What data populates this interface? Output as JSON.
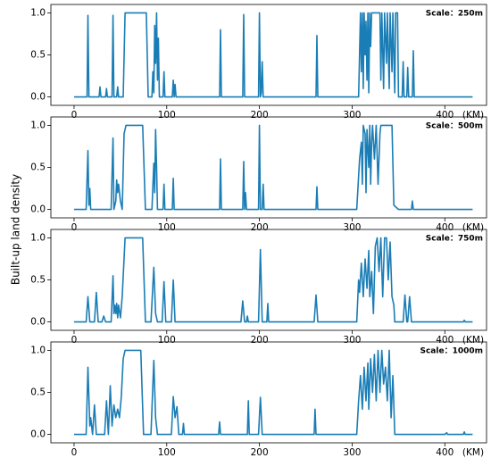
{
  "ylabel": "Built-up  land  density",
  "chart_data": [
    {
      "type": "line",
      "annotation": "Scale：250m",
      "xlabel": "(KM)",
      "color": "#1a7db5",
      "xlim": [
        -25,
        445
      ],
      "ylim": [
        -0.1,
        1.1
      ],
      "xticks": [
        0,
        100,
        200,
        300,
        400
      ],
      "yticks": [
        {
          "value": 0,
          "label": "0.0"
        },
        {
          "value": 0.5,
          "label": "0.5"
        },
        {
          "value": 1,
          "label": "1.0"
        }
      ],
      "x": [
        0,
        14,
        15,
        16,
        27,
        28,
        29,
        34,
        35,
        36,
        41,
        42,
        43,
        46,
        47,
        48,
        53,
        55,
        78,
        80,
        84,
        85,
        86,
        87,
        88,
        89,
        90,
        91,
        92,
        96,
        97,
        98,
        106,
        107,
        108,
        109,
        110,
        157,
        158,
        159,
        182,
        183,
        184,
        199,
        200,
        201,
        202,
        203,
        204,
        261,
        262,
        263,
        307,
        309,
        310,
        311,
        312,
        313,
        314,
        315,
        316,
        317,
        318,
        319,
        320,
        321,
        330,
        331,
        332,
        334,
        335,
        337,
        338,
        340,
        341,
        343,
        344,
        346,
        347,
        349,
        350,
        354,
        355,
        356,
        359,
        360,
        361,
        365,
        366,
        367,
        430
      ],
      "values": [
        0,
        0,
        0.97,
        0,
        0,
        0.12,
        0,
        0,
        0.1,
        0,
        0,
        0.97,
        0,
        0,
        0.12,
        0,
        0,
        1,
        1,
        0,
        0,
        0.3,
        0.05,
        0.85,
        0.4,
        1,
        0.2,
        0.7,
        0,
        0,
        0.3,
        0,
        0,
        0.2,
        0,
        0.15,
        0,
        0,
        0.8,
        0,
        0,
        0.98,
        0,
        0,
        1,
        0,
        0.05,
        0.42,
        0,
        0,
        0.73,
        0,
        0,
        1,
        0.3,
        1,
        0.1,
        1,
        0.5,
        0.9,
        0.2,
        1,
        0.05,
        1,
        0.6,
        1,
        1,
        0.2,
        1,
        0.1,
        1,
        0.4,
        1,
        0.1,
        1,
        0.3,
        1,
        0.05,
        1,
        1,
        0,
        0,
        0.42,
        0,
        0,
        0.35,
        0,
        0,
        0.55,
        0,
        0
      ]
    },
    {
      "type": "line",
      "annotation": "Scale：500m",
      "xlabel": "(KM)",
      "color": "#1a7db5",
      "xlim": [
        -25,
        445
      ],
      "ylim": [
        -0.1,
        1.1
      ],
      "xticks": [
        0,
        100,
        200,
        300,
        400
      ],
      "yticks": [
        {
          "value": 0,
          "label": "0.0"
        },
        {
          "value": 0.5,
          "label": "0.5"
        },
        {
          "value": 1,
          "label": "1.0"
        }
      ],
      "x": [
        0,
        13,
        15,
        16,
        17,
        18,
        40,
        42,
        43,
        45,
        46,
        47,
        48,
        50,
        52,
        54,
        56,
        74,
        77,
        84,
        86,
        87,
        88,
        89,
        90,
        96,
        97,
        98,
        106,
        107,
        108,
        157,
        158,
        159,
        182,
        183,
        184,
        185,
        186,
        199,
        200,
        201,
        203,
        204,
        205,
        261,
        262,
        263,
        305,
        308,
        310,
        311,
        312,
        314,
        315,
        316,
        318,
        319,
        320,
        321,
        322,
        324,
        326,
        328,
        330,
        331,
        343,
        345,
        350,
        364,
        365,
        366,
        430
      ],
      "values": [
        0,
        0,
        0.7,
        0.05,
        0.25,
        0,
        0,
        0.85,
        0,
        0.1,
        0.35,
        0.2,
        0.3,
        0.1,
        0,
        0.9,
        1,
        1,
        0,
        0,
        0.55,
        0.2,
        0.95,
        0.5,
        0,
        0,
        0.3,
        0,
        0,
        0.37,
        0,
        0,
        0.6,
        0,
        0,
        0.57,
        0,
        0.2,
        0,
        0,
        1,
        0,
        0,
        0.3,
        0,
        0,
        0.27,
        0,
        0,
        0.6,
        0.8,
        0.3,
        1,
        0.9,
        0.2,
        0.95,
        0.5,
        1,
        0.3,
        0.8,
        1,
        0.6,
        1,
        0.3,
        0.9,
        1,
        1,
        0.05,
        0,
        0,
        0.1,
        0,
        0
      ]
    },
    {
      "type": "line",
      "annotation": "Scale：750m",
      "xlabel": "(KM)",
      "color": "#1a7db5",
      "xlim": [
        -25,
        445
      ],
      "ylim": [
        -0.1,
        1.1
      ],
      "xticks": [
        0,
        100,
        200,
        300,
        400
      ],
      "yticks": [
        {
          "value": 0,
          "label": "0.0"
        },
        {
          "value": 0.5,
          "label": "0.5"
        },
        {
          "value": 1,
          "label": "1.0"
        }
      ],
      "x": [
        0,
        13,
        15,
        17,
        22,
        24,
        26,
        30,
        32,
        34,
        40,
        42,
        43,
        44,
        45,
        46,
        47,
        48,
        50,
        52,
        55,
        74,
        77,
        83,
        86,
        88,
        90,
        95,
        97,
        99,
        105,
        107,
        109,
        180,
        182,
        184,
        186,
        187,
        188,
        199,
        201,
        203,
        208,
        209,
        210,
        259,
        261,
        263,
        305,
        307,
        308,
        310,
        312,
        314,
        316,
        318,
        319,
        321,
        323,
        325,
        327,
        329,
        331,
        333,
        335,
        337,
        339,
        341,
        343,
        345,
        346,
        355,
        357,
        359,
        360,
        362,
        364,
        420,
        421,
        422,
        430
      ],
      "values": [
        0,
        0,
        0.3,
        0,
        0,
        0.35,
        0,
        0,
        0.07,
        0,
        0,
        0.55,
        0.1,
        0.2,
        0.1,
        0.22,
        0.05,
        0.2,
        0.05,
        0.3,
        1,
        1,
        0,
        0,
        0.65,
        0.1,
        0,
        0,
        0.48,
        0,
        0,
        0.5,
        0,
        0,
        0.25,
        0,
        0,
        0.07,
        0,
        0,
        0.86,
        0,
        0,
        0.22,
        0,
        0,
        0.32,
        0,
        0,
        0.5,
        0.35,
        0.7,
        0.3,
        0.75,
        0.4,
        0.85,
        0.3,
        0.6,
        0.1,
        0.9,
        1,
        0.6,
        1,
        0.3,
        1,
        1,
        0.5,
        0.95,
        0.3,
        0.2,
        0,
        0,
        0.32,
        0,
        0,
        0.3,
        0,
        0,
        0.02,
        0,
        0
      ]
    },
    {
      "type": "line",
      "annotation": "Scale：1000m",
      "xlabel": "(KM)",
      "color": "#1a7db5",
      "xlim": [
        -25,
        445
      ],
      "ylim": [
        -0.1,
        1.1
      ],
      "xticks": [
        0,
        100,
        200,
        300,
        400
      ],
      "yticks": [
        {
          "value": 0,
          "label": "0.0"
        },
        {
          "value": 0.5,
          "label": "0.5"
        },
        {
          "value": 1,
          "label": "1.0"
        }
      ],
      "x": [
        0,
        13,
        15,
        17,
        18,
        20,
        22,
        24,
        33,
        35,
        37,
        39,
        41,
        43,
        45,
        47,
        49,
        51,
        53,
        55,
        72,
        75,
        83,
        86,
        88,
        90,
        105,
        107,
        109,
        111,
        113,
        117,
        118,
        119,
        156,
        157,
        158,
        187,
        188,
        189,
        199,
        201,
        203,
        259,
        260,
        261,
        305,
        307,
        309,
        311,
        313,
        315,
        317,
        318,
        320,
        322,
        324,
        326,
        328,
        330,
        332,
        334,
        336,
        338,
        340,
        342,
        344,
        346,
        400,
        402,
        403,
        420,
        421,
        422,
        430
      ],
      "values": [
        0,
        0,
        0.8,
        0.1,
        0.2,
        0,
        0.35,
        0,
        0,
        0.4,
        0,
        0.58,
        0.1,
        0.35,
        0.2,
        0.3,
        0.2,
        0.45,
        0.9,
        1,
        1,
        0,
        0,
        0.88,
        0.2,
        0,
        0,
        0.45,
        0.2,
        0.33,
        0,
        0,
        0.13,
        0,
        0,
        0.15,
        0,
        0,
        0.4,
        0,
        0,
        0.44,
        0,
        0,
        0.3,
        0,
        0,
        0.4,
        0.7,
        0.3,
        0.8,
        0.4,
        0.85,
        0.3,
        0.9,
        0.5,
        0.95,
        0.4,
        1,
        0.5,
        1,
        0.6,
        0.8,
        0.4,
        1,
        0.2,
        0.7,
        0,
        0,
        0.02,
        0,
        0,
        0.03,
        0,
        0
      ]
    }
  ]
}
